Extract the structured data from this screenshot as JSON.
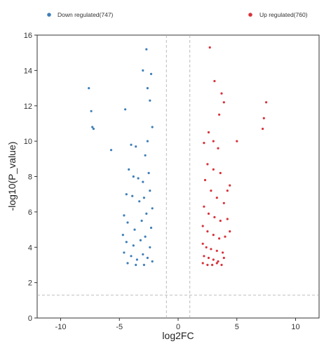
{
  "chart_data": {
    "type": "scatter",
    "title": "",
    "xlabel": "log2FC",
    "ylabel": "-log10(P_value)",
    "xlim": [
      -12,
      12
    ],
    "ylim": [
      0,
      16
    ],
    "xticks": [
      -10,
      -5,
      0,
      5,
      10
    ],
    "yticks": [
      0,
      2,
      4,
      6,
      8,
      10,
      12,
      14,
      16
    ],
    "threshold_lines": {
      "log2fc": [
        -1,
        1
      ],
      "neg_log10_p": 1.3,
      "style": "dashed",
      "color": "#aaaaaa"
    },
    "legend": {
      "placement": "top",
      "entries": [
        {
          "label": "Down regulated(747)",
          "color": "#3f7fb8"
        },
        {
          "label": "Up regulated(760)",
          "color": "#d8333b"
        }
      ]
    },
    "series": [
      {
        "name": "Down regulated(747)",
        "color": "#3f7fb8",
        "count": 747,
        "points": [
          [
            -7.6,
            13.0
          ],
          [
            -7.4,
            11.7
          ],
          [
            -7.3,
            10.8
          ],
          [
            -7.2,
            10.7
          ],
          [
            -5.7,
            9.5
          ],
          [
            -4.5,
            11.8
          ],
          [
            -3.0,
            14.0
          ],
          [
            -2.7,
            15.2
          ],
          [
            -2.6,
            13.0
          ],
          [
            -2.3,
            13.8
          ],
          [
            -2.4,
            12.3
          ],
          [
            -4.0,
            9.8
          ],
          [
            -3.6,
            9.7
          ],
          [
            -2.8,
            9.2
          ],
          [
            -2.6,
            10.0
          ],
          [
            -2.2,
            10.8
          ],
          [
            -4.2,
            8.4
          ],
          [
            -3.8,
            8.0
          ],
          [
            -3.4,
            7.9
          ],
          [
            -3.0,
            7.7
          ],
          [
            -2.5,
            8.2
          ],
          [
            -4.4,
            7.0
          ],
          [
            -3.9,
            6.9
          ],
          [
            -3.3,
            6.6
          ],
          [
            -2.9,
            6.8
          ],
          [
            -2.4,
            7.2
          ],
          [
            -2.2,
            6.2
          ],
          [
            -4.6,
            5.8
          ],
          [
            -4.3,
            5.4
          ],
          [
            -3.7,
            5.0
          ],
          [
            -3.1,
            5.5
          ],
          [
            -2.7,
            5.9
          ],
          [
            -2.3,
            5.1
          ],
          [
            -4.7,
            4.7
          ],
          [
            -4.4,
            4.3
          ],
          [
            -3.8,
            4.1
          ],
          [
            -3.2,
            4.4
          ],
          [
            -2.8,
            4.6
          ],
          [
            -2.4,
            4.0
          ],
          [
            -4.6,
            3.7
          ],
          [
            -4.0,
            3.5
          ],
          [
            -3.5,
            3.3
          ],
          [
            -3.0,
            3.6
          ],
          [
            -2.6,
            3.4
          ],
          [
            -2.2,
            3.2
          ],
          [
            -4.3,
            3.1
          ],
          [
            -3.6,
            3.0
          ],
          [
            -2.9,
            3.0
          ]
        ]
      },
      {
        "name": "Up regulated(760)",
        "color": "#d8333b",
        "count": 760,
        "points": [
          [
            2.7,
            15.3
          ],
          [
            3.1,
            13.4
          ],
          [
            3.7,
            12.7
          ],
          [
            3.9,
            12.2
          ],
          [
            3.5,
            11.5
          ],
          [
            7.5,
            12.2
          ],
          [
            7.3,
            11.3
          ],
          [
            7.2,
            10.7
          ],
          [
            5.0,
            10.0
          ],
          [
            2.6,
            10.5
          ],
          [
            3.0,
            10.0
          ],
          [
            3.4,
            9.6
          ],
          [
            2.2,
            9.9
          ],
          [
            2.5,
            8.7
          ],
          [
            3.0,
            8.4
          ],
          [
            3.6,
            8.2
          ],
          [
            4.2,
            7.2
          ],
          [
            2.3,
            7.8
          ],
          [
            2.8,
            7.2
          ],
          [
            3.3,
            6.8
          ],
          [
            3.9,
            6.5
          ],
          [
            4.4,
            7.5
          ],
          [
            2.2,
            6.3
          ],
          [
            2.6,
            5.9
          ],
          [
            3.1,
            5.7
          ],
          [
            3.6,
            5.5
          ],
          [
            4.2,
            5.6
          ],
          [
            2.1,
            5.2
          ],
          [
            2.5,
            4.9
          ],
          [
            3.0,
            4.7
          ],
          [
            3.5,
            4.5
          ],
          [
            4.0,
            4.6
          ],
          [
            4.4,
            4.9
          ],
          [
            2.1,
            4.2
          ],
          [
            2.4,
            4.0
          ],
          [
            2.8,
            3.9
          ],
          [
            3.3,
            3.8
          ],
          [
            3.8,
            3.7
          ],
          [
            2.2,
            3.5
          ],
          [
            2.6,
            3.4
          ],
          [
            3.0,
            3.3
          ],
          [
            3.4,
            3.2
          ],
          [
            3.9,
            3.4
          ],
          [
            2.1,
            3.1
          ],
          [
            2.5,
            3.0
          ],
          [
            2.9,
            3.0
          ],
          [
            3.3,
            3.1
          ],
          [
            3.7,
            3.0
          ]
        ]
      }
    ]
  }
}
